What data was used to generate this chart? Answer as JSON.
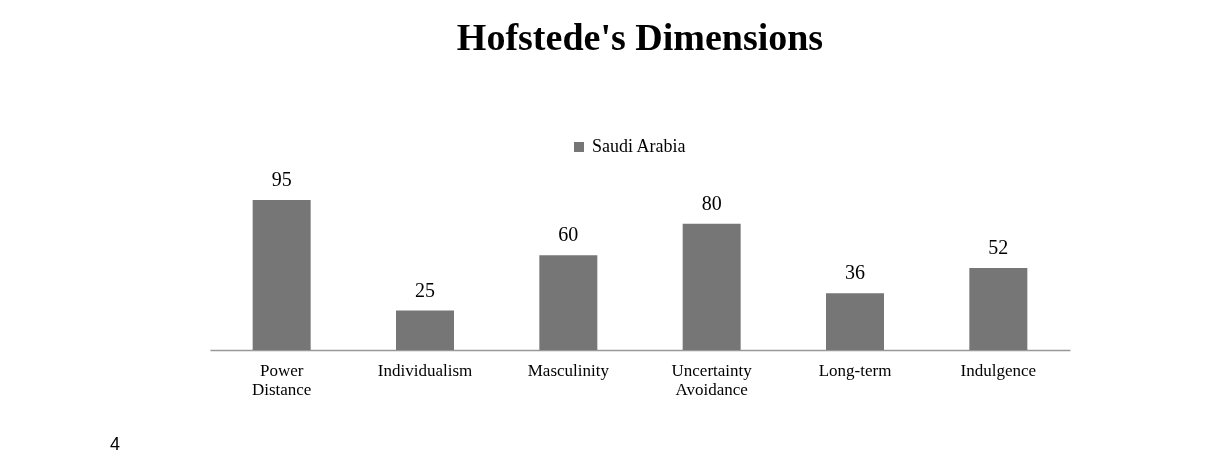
{
  "chart_data": {
    "type": "bar",
    "title": "Hofstede's Dimensions",
    "categories": [
      "Power Distance",
      "Individualism",
      "Masculinity",
      "Uncertainty Avoidance",
      "Long-term",
      "Indulgence"
    ],
    "series": [
      {
        "name": "Saudi Arabia",
        "color": "#767676",
        "values": [
          95,
          25,
          60,
          80,
          36,
          52
        ]
      }
    ],
    "data_labels": true,
    "legend": "top",
    "grid": false,
    "annotations": [
      "4"
    ]
  }
}
